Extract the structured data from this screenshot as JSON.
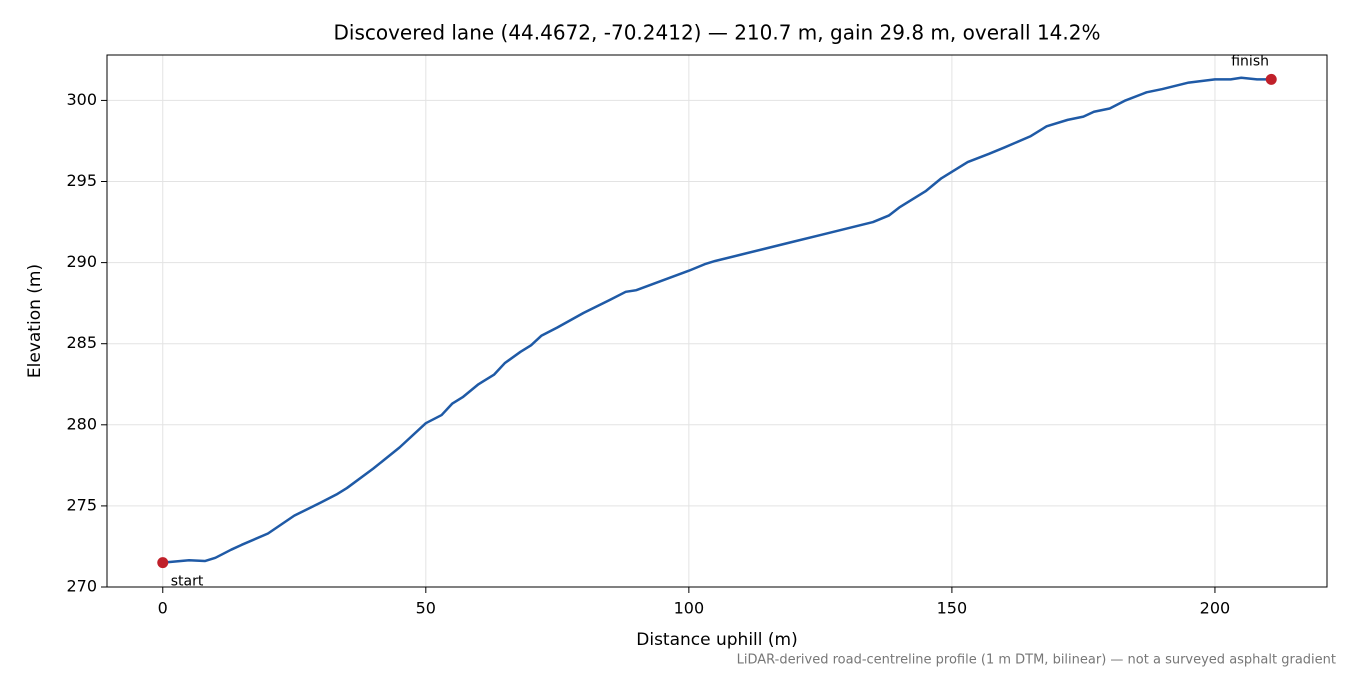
{
  "chart_data": {
    "type": "line",
    "title": "Discovered lane (44.4672, -70.2412) — 210.7 m, gain 29.8 m, overall 14.2%",
    "xlabel": "Distance uphill (m)",
    "ylabel": "Elevation (m)",
    "footnote": "LiDAR-derived road-centreline profile (1 m DTM, bilinear) — not a surveyed asphalt gradient",
    "annotations": [
      "start",
      "finish"
    ],
    "marker_color": "#c0202a",
    "x": [
      0,
      5,
      8,
      10,
      13,
      15,
      20,
      25,
      30,
      33,
      35,
      40,
      45,
      50,
      53,
      55,
      57,
      60,
      63,
      65,
      68,
      70,
      72,
      75,
      80,
      85,
      88,
      90,
      95,
      100,
      103,
      105,
      110,
      115,
      120,
      125,
      130,
      135,
      138,
      140,
      145,
      148,
      150,
      153,
      157,
      160,
      165,
      168,
      172,
      175,
      177,
      180,
      183,
      187,
      190,
      195,
      200,
      203,
      205,
      208,
      210.7
    ],
    "series": [
      {
        "name": "Elevation",
        "color": "#1f5aa6",
        "values": [
          271.5,
          271.65,
          271.6,
          271.8,
          272.3,
          272.6,
          273.3,
          274.4,
          275.2,
          275.7,
          276.1,
          277.3,
          278.6,
          280.1,
          280.6,
          281.3,
          281.7,
          282.5,
          283.1,
          283.8,
          284.5,
          284.9,
          285.5,
          286.0,
          286.9,
          287.7,
          288.2,
          288.3,
          288.9,
          289.5,
          289.9,
          290.1,
          290.5,
          290.9,
          291.3,
          291.7,
          292.1,
          292.5,
          292.9,
          293.4,
          294.4,
          295.2,
          295.6,
          296.2,
          296.7,
          297.1,
          297.8,
          298.4,
          298.8,
          299.0,
          299.3,
          299.5,
          300.0,
          300.5,
          300.7,
          301.1,
          301.3,
          301.3,
          301.4,
          301.3,
          301.3
        ]
      }
    ],
    "xlim": [
      -10.6,
      221.3
    ],
    "ylim": [
      270,
      302.8
    ],
    "xticks": [
      0,
      50,
      100,
      150,
      200
    ],
    "yticks": [
      270,
      275,
      280,
      285,
      290,
      295,
      300
    ],
    "grid": true
  }
}
